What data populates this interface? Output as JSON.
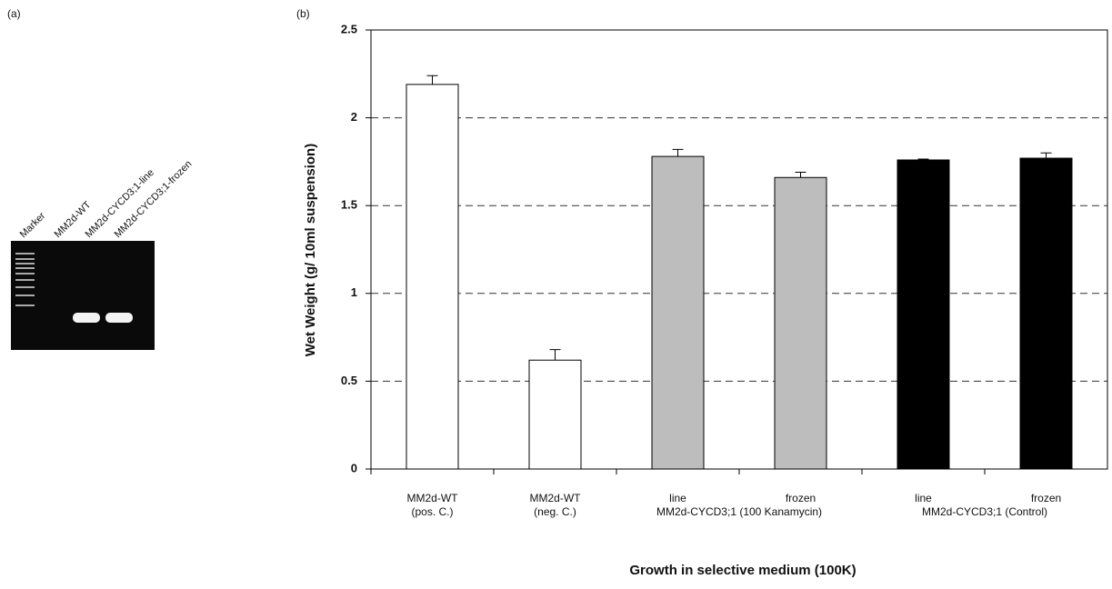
{
  "panel_a": {
    "label": "(a)",
    "lanes": [
      "Marker",
      "MM2d-WT",
      "MM2d-CYCD3;1-line",
      "MM2d-CYCD3;1-frozen"
    ]
  },
  "chart_data": {
    "type": "bar",
    "panel_label": "(b)",
    "ylabel": "Wet Weight (g/ 10ml suspension)",
    "xlabel": "Growth in selective medium (100K)",
    "categories": [
      "MM2d-WT",
      "MM2d-WT",
      "line",
      "frozen",
      "line",
      "frozen"
    ],
    "sublabels": [
      "(pos. C.)",
      "(neg. C.)",
      null,
      null,
      null,
      null
    ],
    "groups": [
      "MM2d-CYCD3;1 (100 Kanamycin)",
      "MM2d-CYCD3;1 (Control)"
    ],
    "values": [
      2.19,
      0.62,
      1.78,
      1.66,
      1.76,
      1.77
    ],
    "errors": [
      0.05,
      0.06,
      0.04,
      0.03,
      0.005,
      0.03
    ],
    "colors": [
      "#ffffff",
      "#ffffff",
      "#bdbdbd",
      "#bdbdbd",
      "#000000",
      "#000000"
    ],
    "ylim": [
      0,
      2.5
    ],
    "yticks": [
      0,
      0.5,
      1,
      1.5,
      2,
      2.5
    ],
    "grid": true
  }
}
